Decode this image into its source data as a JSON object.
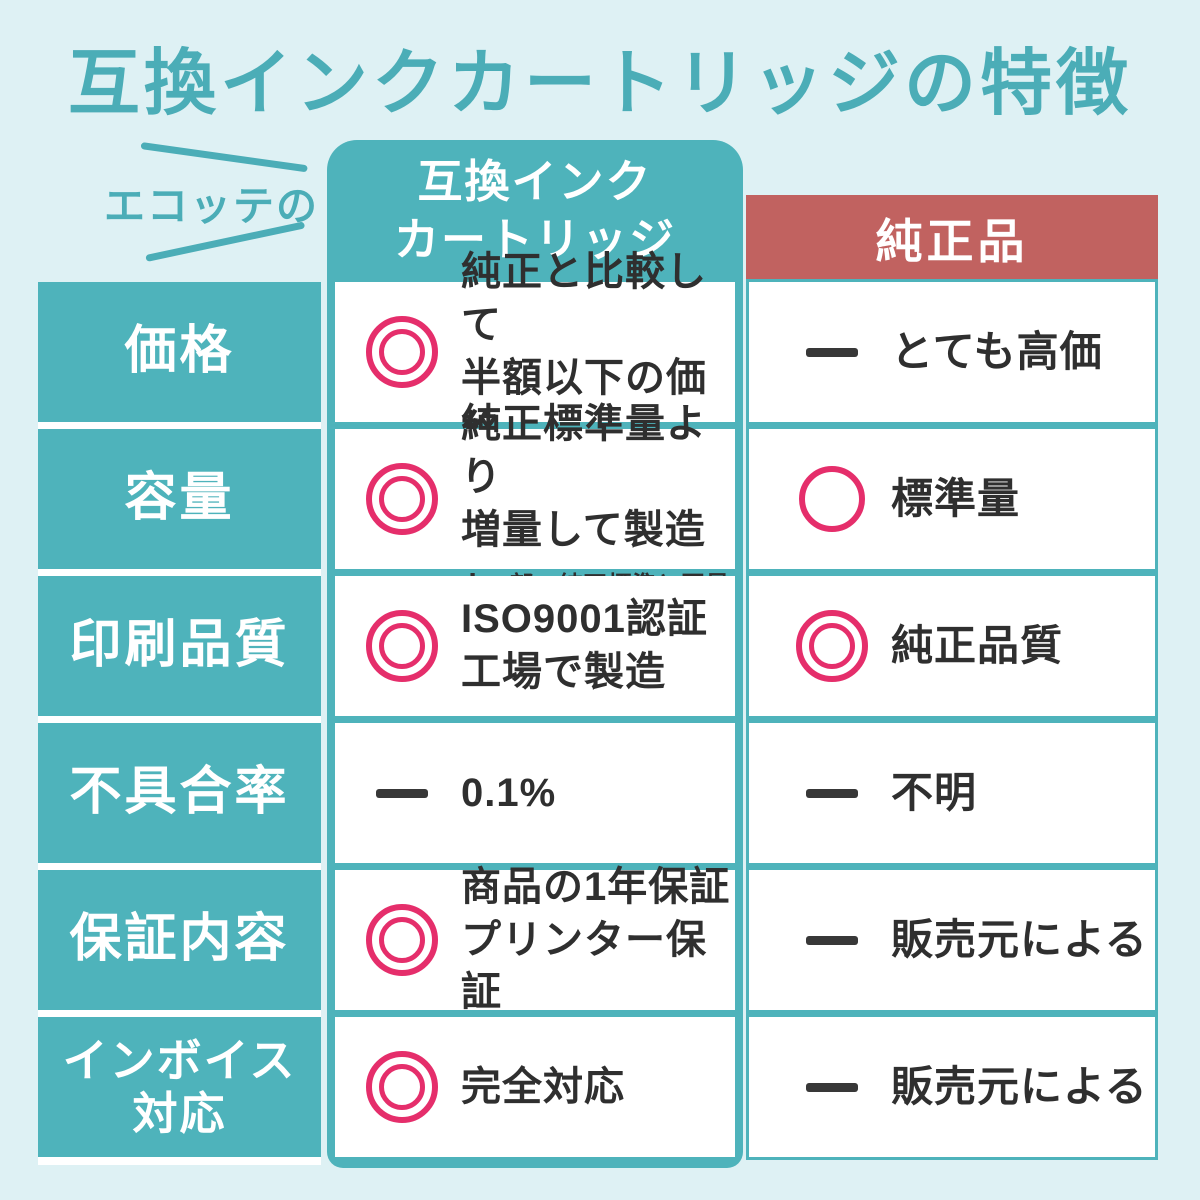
{
  "page": {
    "title": "互換インクカートリッジの特徴"
  },
  "colors": {
    "background": "#def1f4",
    "teal": "#4eb3bb",
    "title_teal": "#4badb7",
    "genuine_red": "#c16260",
    "rating_pink": "#e52e6b",
    "text_dark": "#2f2f2f"
  },
  "table": {
    "brand_label": "エコッテの",
    "ecotte_header": "互換インク\nカートリッジ",
    "genuine_header": "純正品",
    "rows": [
      {
        "label": "価格",
        "ecotte": {
          "icon": "double-circle",
          "text": "純正と比較して\n半額以下の価格",
          "note": ""
        },
        "genuine": {
          "icon": "dash",
          "text": "とても高価"
        }
      },
      {
        "label": "容量",
        "ecotte": {
          "icon": "double-circle",
          "text": "純正標準量より\n増量して製造",
          "note": "※一部、純正標準と同量"
        },
        "genuine": {
          "icon": "single-circle",
          "text": "標準量"
        }
      },
      {
        "label": "印刷品質",
        "ecotte": {
          "icon": "double-circle",
          "text": "ISO9001認証\n工場で製造",
          "note": ""
        },
        "genuine": {
          "icon": "double-circle",
          "text": "純正品質"
        }
      },
      {
        "label": "不具合率",
        "ecotte": {
          "icon": "dash",
          "text": "0.1%",
          "note": ""
        },
        "genuine": {
          "icon": "dash",
          "text": "不明"
        }
      },
      {
        "label": "保証内容",
        "ecotte": {
          "icon": "double-circle",
          "text": "商品の1年保証\nプリンター保証",
          "note": ""
        },
        "genuine": {
          "icon": "dash",
          "text": "販売元による"
        }
      },
      {
        "label": "インボイス\n対応",
        "ecotte": {
          "icon": "double-circle",
          "text": "完全対応",
          "note": ""
        },
        "genuine": {
          "icon": "dash",
          "text": "販売元による"
        }
      }
    ]
  }
}
